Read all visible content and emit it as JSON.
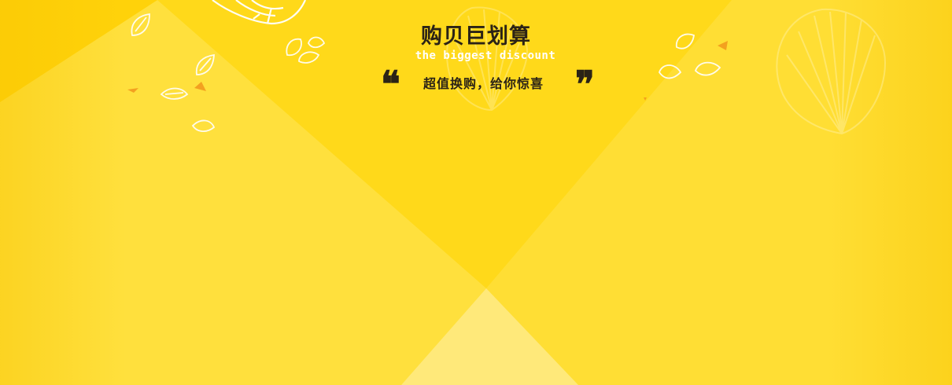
{
  "banner": {
    "title": "购贝巨划算",
    "subtitle": "the biggest discount",
    "slogan": "超值换购，给你惊喜",
    "quote_open": "❝",
    "quote_close": "❞"
  },
  "colors": {
    "background": "#FFD91A",
    "light_triangle": "#FFE55C",
    "text_dark": "#2b2316",
    "text_light": "#FFFFFF",
    "accent_orange": "#F29A1D"
  },
  "decorations": {
    "icon_names": [
      "shell-icon",
      "leaf-icon",
      "triangle-confetti-icon"
    ]
  }
}
